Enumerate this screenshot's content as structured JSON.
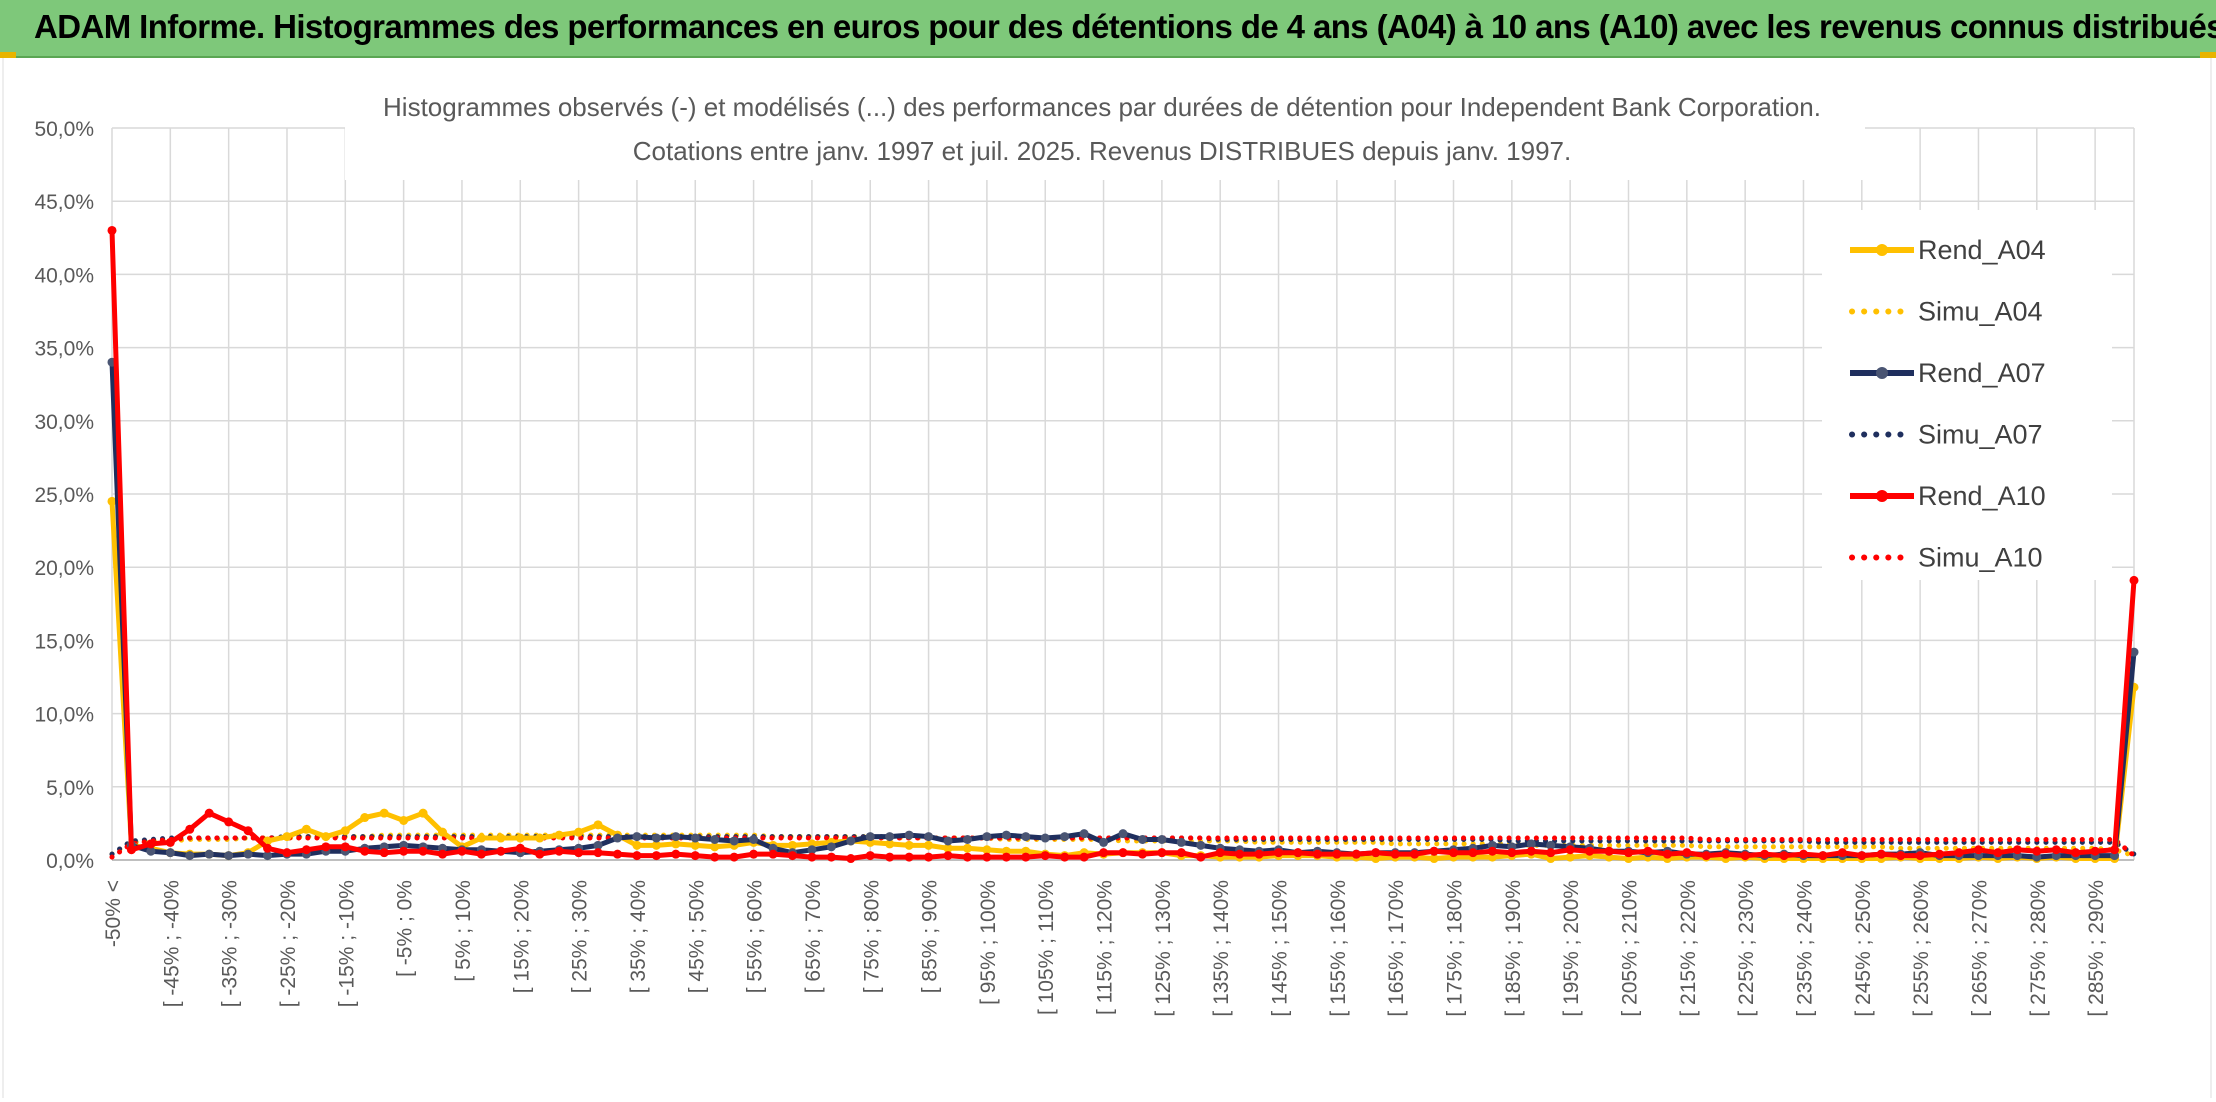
{
  "header": {
    "title": "ADAM Informe. Histogrammes des performances en euros pour des détentions de 4 ans (A04) à 10 ans (A10) avec les revenus connus distribués"
  },
  "chart_data": {
    "type": "line",
    "title": "Histogrammes observés (-) et modélisés (...) des performances par durées de détention pour Independent Bank Corporation.",
    "subtitle": "Cotations entre janv. 1997 et juil. 2025. Revenus DISTRIBUES depuis janv. 1997.",
    "ylim": [
      0,
      50
    ],
    "y_ticks": [
      "0,0%",
      "5,0%",
      "10,0%",
      "15,0%",
      "20,0%",
      "25,0%",
      "30,0%",
      "35,0%",
      "40,0%",
      "45,0%",
      "50,0%"
    ],
    "grid": true,
    "legend_position": "right",
    "x_tick_labels": [
      "-50% <",
      "[ -45% ; -40%",
      "[ -35% ; -30%",
      "[ -25% ; -20%",
      "[ -15% ; -10%",
      "[ -5% ; 0%",
      "[ 5% ; 10%",
      "[ 15% ; 20%",
      "[ 25% ; 30%",
      "[ 35% ; 40%",
      "[ 45% ; 50%",
      "[ 55% ; 60%",
      "[ 65% ; 70%",
      "[ 75% ; 80%",
      "[ 85% ; 90%",
      "[ 95% ; 100%",
      "[ 105% ; 110%",
      "[ 115% ; 120%",
      "[ 125% ; 130%",
      "[ 135% ; 140%",
      "[ 145% ; 150%",
      "[ 155% ; 160%",
      "[ 165% ; 170%",
      "[ 175% ; 180%",
      "[ 185% ; 190%",
      "[ 195% ; 200%",
      "[ 205% ; 210%",
      "[ 215% ; 220%",
      "[ 225% ; 230%",
      "[ 235% ; 240%",
      "[ 245% ; 250%",
      "[ 255% ; 260%",
      "[ 265% ; 270%",
      "[ 275% ; 280%",
      "[ 285% ; 290%"
    ],
    "series": [
      {
        "name": "Rend_A04",
        "color": "#ffc000",
        "style": "solid",
        "markers": true,
        "values": [
          24.5,
          1.0,
          0.8,
          0.5,
          0.4,
          0.4,
          0.3,
          0.5,
          1.3,
          1.6,
          2.1,
          1.6,
          2.0,
          2.9,
          3.2,
          2.7,
          3.2,
          1.9,
          0.9,
          1.5,
          1.5,
          1.5,
          1.5,
          1.7,
          1.9,
          2.4,
          1.7,
          1.0,
          1.0,
          1.1,
          1.0,
          0.9,
          1.0,
          1.2,
          1.0,
          1.0,
          1.1,
          1.2,
          1.3,
          1.2,
          1.1,
          1.0,
          1.0,
          0.8,
          0.8,
          0.7,
          0.6,
          0.6,
          0.4,
          0.3,
          0.5,
          0.4,
          0.5,
          0.5,
          0.5,
          0.3,
          0.3,
          0.2,
          0.2,
          0.2,
          0.3,
          0.3,
          0.3,
          0.2,
          0.2,
          0.1,
          0.2,
          0.2,
          0.1,
          0.2,
          0.2,
          0.2,
          0.3,
          0.4,
          0.1,
          0.2,
          0.3,
          0.2,
          0.1,
          0.2,
          0.1,
          0.2,
          0.2,
          0.1,
          0.2,
          0.1,
          0.1,
          0.1,
          0.1,
          0.1,
          0.1,
          0.1,
          0.2,
          0.1,
          0.1,
          0.1,
          0.2,
          0.1,
          0.2,
          0.1,
          0.2,
          0.1,
          0.1,
          0.1,
          11.8
        ]
      },
      {
        "name": "Simu_A04",
        "color": "#ffc000",
        "style": "dotted",
        "markers": false,
        "values": [
          0.4,
          1.2,
          1.3,
          1.3,
          1.4,
          1.4,
          1.4,
          1.5,
          1.5,
          1.5,
          1.6,
          1.6,
          1.6,
          1.6,
          1.7,
          1.7,
          1.7,
          1.7,
          1.7,
          1.7,
          1.7,
          1.7,
          1.7,
          1.7,
          1.7,
          1.7,
          1.7,
          1.7,
          1.7,
          1.7,
          1.7,
          1.7,
          1.7,
          1.7,
          1.6,
          1.6,
          1.6,
          1.6,
          1.6,
          1.6,
          1.5,
          1.5,
          1.5,
          1.5,
          1.5,
          1.5,
          1.4,
          1.4,
          1.4,
          1.4,
          1.4,
          1.4,
          1.3,
          1.3,
          1.3,
          1.3,
          1.3,
          1.3,
          1.3,
          1.2,
          1.2,
          1.2,
          1.2,
          1.2,
          1.2,
          1.2,
          1.1,
          1.1,
          1.1,
          1.1,
          1.1,
          1.1,
          1.1,
          1.0,
          1.0,
          1.0,
          1.0,
          1.0,
          1.0,
          1.0,
          1.0,
          1.0,
          0.9,
          0.9,
          0.9,
          0.9,
          0.9,
          0.9,
          0.9,
          0.9,
          0.9,
          0.9,
          0.8,
          0.8,
          0.8,
          0.8,
          0.8,
          0.8,
          0.8,
          0.8,
          0.8,
          0.8,
          0.8,
          0.7,
          0.3
        ]
      },
      {
        "name": "Rend_A07",
        "color": "#1f2f5e",
        "style": "solid",
        "markers": true,
        "values": [
          34.0,
          1.0,
          0.6,
          0.5,
          0.3,
          0.4,
          0.3,
          0.4,
          0.3,
          0.4,
          0.4,
          0.6,
          0.6,
          0.8,
          0.9,
          1.0,
          0.9,
          0.8,
          0.7,
          0.7,
          0.6,
          0.5,
          0.6,
          0.7,
          0.8,
          1.0,
          1.5,
          1.6,
          1.5,
          1.6,
          1.5,
          1.4,
          1.3,
          1.4,
          0.8,
          0.5,
          0.7,
          0.9,
          1.3,
          1.6,
          1.6,
          1.7,
          1.6,
          1.3,
          1.4,
          1.6,
          1.7,
          1.6,
          1.5,
          1.6,
          1.8,
          1.2,
          1.8,
          1.4,
          1.4,
          1.2,
          1.0,
          0.8,
          0.7,
          0.6,
          0.7,
          0.5,
          0.6,
          0.5,
          0.4,
          0.5,
          0.5,
          0.5,
          0.6,
          0.7,
          0.8,
          1.0,
          0.9,
          1.1,
          1.0,
          0.9,
          0.8,
          0.6,
          0.6,
          0.5,
          0.6,
          0.4,
          0.4,
          0.5,
          0.4,
          0.3,
          0.4,
          0.3,
          0.3,
          0.3,
          0.3,
          0.4,
          0.4,
          0.5,
          0.3,
          0.3,
          0.3,
          0.3,
          0.3,
          0.2,
          0.3,
          0.3,
          0.3,
          0.3,
          14.2
        ]
      },
      {
        "name": "Simu_A07",
        "color": "#1f2f5e",
        "style": "dotted",
        "markers": false,
        "values": [
          0.4,
          1.3,
          1.4,
          1.5,
          1.5,
          1.5,
          1.5,
          1.5,
          1.5,
          1.6,
          1.6,
          1.6,
          1.6,
          1.6,
          1.6,
          1.6,
          1.6,
          1.6,
          1.6,
          1.6,
          1.6,
          1.6,
          1.6,
          1.6,
          1.6,
          1.6,
          1.6,
          1.6,
          1.6,
          1.6,
          1.6,
          1.6,
          1.6,
          1.6,
          1.6,
          1.6,
          1.6,
          1.6,
          1.6,
          1.6,
          1.6,
          1.6,
          1.5,
          1.5,
          1.5,
          1.5,
          1.5,
          1.5,
          1.5,
          1.5,
          1.5,
          1.5,
          1.5,
          1.5,
          1.5,
          1.5,
          1.5,
          1.4,
          1.4,
          1.4,
          1.4,
          1.4,
          1.4,
          1.4,
          1.4,
          1.4,
          1.4,
          1.4,
          1.4,
          1.4,
          1.4,
          1.4,
          1.3,
          1.3,
          1.3,
          1.3,
          1.3,
          1.3,
          1.3,
          1.3,
          1.3,
          1.3,
          1.3,
          1.3,
          1.3,
          1.3,
          1.3,
          1.3,
          1.2,
          1.2,
          1.2,
          1.2,
          1.2,
          1.2,
          1.2,
          1.2,
          1.2,
          1.2,
          1.2,
          1.2,
          1.2,
          1.2,
          1.2,
          1.2,
          0.4
        ]
      },
      {
        "name": "Rend_A10",
        "color": "#ff0000",
        "style": "solid",
        "markers": true,
        "values": [
          43.0,
          0.7,
          1.1,
          1.2,
          2.1,
          3.2,
          2.6,
          2.0,
          0.8,
          0.5,
          0.7,
          0.9,
          0.9,
          0.6,
          0.5,
          0.6,
          0.6,
          0.4,
          0.6,
          0.4,
          0.6,
          0.8,
          0.4,
          0.6,
          0.5,
          0.5,
          0.4,
          0.3,
          0.3,
          0.4,
          0.3,
          0.2,
          0.2,
          0.4,
          0.4,
          0.3,
          0.2,
          0.2,
          0.1,
          0.3,
          0.2,
          0.2,
          0.2,
          0.3,
          0.2,
          0.2,
          0.2,
          0.2,
          0.3,
          0.2,
          0.2,
          0.5,
          0.5,
          0.4,
          0.5,
          0.5,
          0.2,
          0.5,
          0.4,
          0.4,
          0.5,
          0.5,
          0.4,
          0.4,
          0.4,
          0.5,
          0.4,
          0.4,
          0.6,
          0.5,
          0.5,
          0.6,
          0.5,
          0.6,
          0.5,
          0.7,
          0.6,
          0.6,
          0.5,
          0.6,
          0.4,
          0.5,
          0.3,
          0.4,
          0.3,
          0.4,
          0.3,
          0.4,
          0.3,
          0.5,
          0.3,
          0.4,
          0.3,
          0.3,
          0.4,
          0.5,
          0.7,
          0.5,
          0.7,
          0.6,
          0.7,
          0.5,
          0.6,
          0.7,
          19.1
        ]
      },
      {
        "name": "Simu_A10",
        "color": "#ff0000",
        "style": "dotted",
        "markers": false,
        "values": [
          0.2,
          1.1,
          1.3,
          1.4,
          1.5,
          1.5,
          1.5,
          1.5,
          1.5,
          1.5,
          1.5,
          1.5,
          1.5,
          1.5,
          1.5,
          1.5,
          1.5,
          1.5,
          1.5,
          1.5,
          1.5,
          1.5,
          1.5,
          1.5,
          1.5,
          1.5,
          1.5,
          1.5,
          1.5,
          1.5,
          1.5,
          1.5,
          1.5,
          1.5,
          1.5,
          1.5,
          1.5,
          1.5,
          1.5,
          1.5,
          1.5,
          1.5,
          1.5,
          1.5,
          1.5,
          1.5,
          1.5,
          1.5,
          1.5,
          1.5,
          1.5,
          1.5,
          1.5,
          1.5,
          1.5,
          1.5,
          1.5,
          1.5,
          1.5,
          1.5,
          1.5,
          1.5,
          1.5,
          1.5,
          1.5,
          1.5,
          1.5,
          1.5,
          1.5,
          1.5,
          1.5,
          1.5,
          1.5,
          1.5,
          1.5,
          1.5,
          1.5,
          1.5,
          1.5,
          1.5,
          1.5,
          1.5,
          1.4,
          1.4,
          1.4,
          1.4,
          1.4,
          1.4,
          1.4,
          1.4,
          1.4,
          1.4,
          1.4,
          1.4,
          1.4,
          1.4,
          1.4,
          1.4,
          1.4,
          1.4,
          1.4,
          1.4,
          1.4,
          1.4,
          0.3
        ]
      }
    ]
  }
}
